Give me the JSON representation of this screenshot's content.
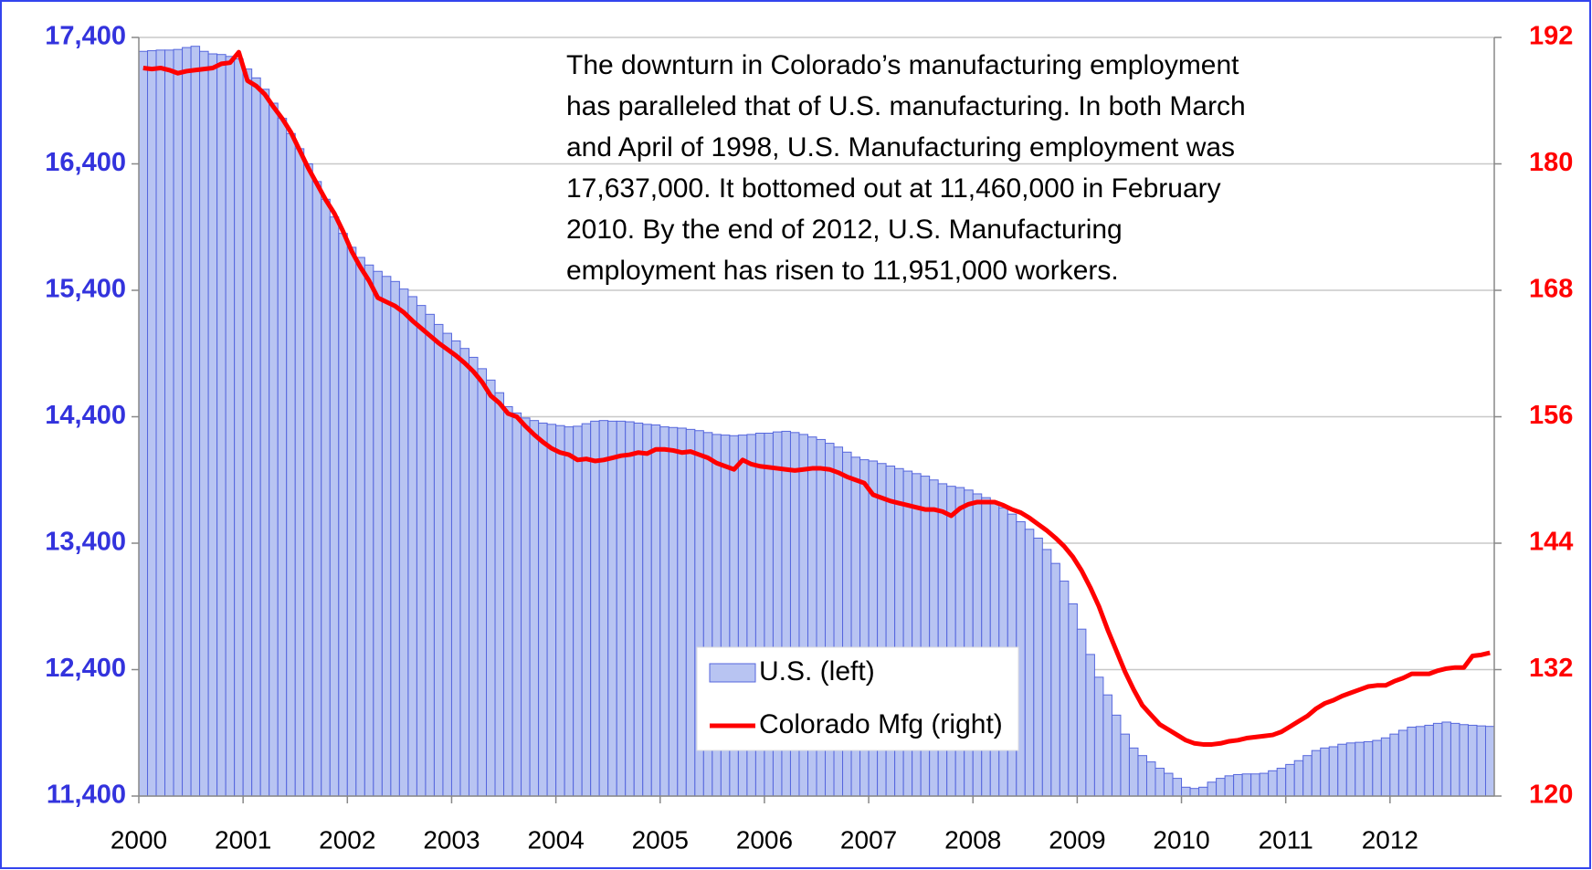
{
  "chart_data": {
    "type": "bar_line",
    "annotation": [
      "The downturn in Colorado’s manufacturing employment",
      "has paralleled that of U.S. manufacturing. In both March",
      "and April of 1998, U.S. Manufacturing employment was",
      "17,637,000. It bottomed out at 11,460,000 in February",
      "2010.   By the end of 2012, U.S. Manufacturing",
      "employment has risen to 11,951,000 workers."
    ],
    "categories": [
      "2000",
      null,
      null,
      null,
      null,
      null,
      null,
      null,
      null,
      null,
      null,
      null,
      "2001",
      null,
      null,
      null,
      null,
      null,
      null,
      null,
      null,
      null,
      null,
      null,
      "2002",
      null,
      null,
      null,
      null,
      null,
      null,
      null,
      null,
      null,
      null,
      null,
      "2003",
      null,
      null,
      null,
      null,
      null,
      null,
      null,
      null,
      null,
      null,
      null,
      "2004",
      null,
      null,
      null,
      null,
      null,
      null,
      null,
      null,
      null,
      null,
      null,
      "2005",
      null,
      null,
      null,
      null,
      null,
      null,
      null,
      null,
      null,
      null,
      null,
      "2006",
      null,
      null,
      null,
      null,
      null,
      null,
      null,
      null,
      null,
      null,
      null,
      "2007",
      null,
      null,
      null,
      null,
      null,
      null,
      null,
      null,
      null,
      null,
      null,
      "2008",
      null,
      null,
      null,
      null,
      null,
      null,
      null,
      null,
      null,
      null,
      null,
      "2009",
      null,
      null,
      null,
      null,
      null,
      null,
      null,
      null,
      null,
      null,
      null,
      "2010",
      null,
      null,
      null,
      null,
      null,
      null,
      null,
      null,
      null,
      null,
      null,
      "2011",
      null,
      null,
      null,
      null,
      null,
      null,
      null,
      null,
      null,
      null,
      null,
      "2012",
      null,
      null,
      null,
      null,
      null,
      null,
      null,
      null,
      null,
      null,
      null
    ],
    "series": [
      {
        "name": "U.S. (left)",
        "type": "bar",
        "color": "#b8c4f2",
        "edge_color": "#5566dd",
        "axis": "y",
        "values": [
          17290,
          17295,
          17300,
          17300,
          17305,
          17320,
          17330,
          17290,
          17270,
          17265,
          17250,
          17230,
          17150,
          17080,
          16990,
          16880,
          16760,
          16640,
          16520,
          16400,
          16260,
          16120,
          15980,
          15850,
          15740,
          15660,
          15600,
          15550,
          15510,
          15470,
          15410,
          15350,
          15280,
          15210,
          15130,
          15060,
          15000,
          14940,
          14870,
          14780,
          14690,
          14590,
          14480,
          14430,
          14390,
          14370,
          14350,
          14340,
          14330,
          14320,
          14325,
          14345,
          14365,
          14370,
          14365,
          14365,
          14360,
          14350,
          14340,
          14335,
          14320,
          14315,
          14310,
          14300,
          14290,
          14275,
          14260,
          14255,
          14250,
          14255,
          14260,
          14270,
          14270,
          14280,
          14285,
          14275,
          14260,
          14240,
          14220,
          14190,
          14160,
          14120,
          14080,
          14060,
          14050,
          14030,
          14010,
          13990,
          13970,
          13950,
          13930,
          13900,
          13870,
          13850,
          13840,
          13820,
          13790,
          13760,
          13720,
          13680,
          13630,
          13570,
          13510,
          13440,
          13350,
          13240,
          13100,
          12920,
          12720,
          12520,
          12340,
          12200,
          12040,
          11890,
          11780,
          11720,
          11670,
          11620,
          11580,
          11540,
          11470,
          11460,
          11470,
          11510,
          11540,
          11560,
          11570,
          11575,
          11575,
          11580,
          11600,
          11620,
          11650,
          11680,
          11720,
          11760,
          11780,
          11790,
          11810,
          11820,
          11825,
          11830,
          11840,
          11860,
          11890,
          11920,
          11945,
          11950,
          11960,
          11975,
          11985,
          11975,
          11965,
          11960,
          11955,
          11951
        ]
      },
      {
        "name": "Colorado Mfg (right)",
        "type": "line",
        "color": "#ff0000",
        "axis": "y2",
        "values": [
          189.1,
          189.0,
          189.1,
          188.9,
          188.6,
          188.8,
          188.9,
          189.0,
          189.1,
          189.5,
          189.6,
          190.6,
          187.9,
          187.4,
          186.6,
          185.4,
          184.3,
          183.0,
          181.3,
          179.6,
          178.1,
          176.6,
          175.3,
          173.6,
          171.7,
          170.2,
          168.9,
          167.3,
          166.9,
          166.5,
          165.9,
          165.1,
          164.4,
          163.7,
          163.0,
          162.4,
          161.8,
          161.1,
          160.3,
          159.3,
          158.0,
          157.3,
          156.3,
          156.0,
          155.1,
          154.3,
          153.6,
          153.0,
          152.6,
          152.4,
          151.9,
          152.0,
          151.8,
          151.9,
          152.1,
          152.3,
          152.4,
          152.6,
          152.5,
          152.9,
          152.9,
          152.8,
          152.6,
          152.7,
          152.4,
          152.1,
          151.6,
          151.3,
          151.0,
          151.9,
          151.5,
          151.3,
          151.2,
          151.1,
          151.0,
          150.9,
          151.0,
          151.1,
          151.1,
          151.0,
          150.7,
          150.3,
          150.0,
          149.7,
          148.6,
          148.3,
          148.0,
          147.8,
          147.6,
          147.4,
          147.2,
          147.2,
          147.0,
          146.6,
          147.3,
          147.7,
          147.9,
          147.9,
          147.9,
          147.6,
          147.2,
          146.9,
          146.4,
          145.8,
          145.2,
          144.5,
          143.7,
          142.7,
          141.4,
          139.8,
          138.0,
          135.8,
          133.8,
          131.8,
          130.1,
          128.6,
          127.7,
          126.8,
          126.3,
          125.8,
          125.3,
          125.0,
          124.9,
          124.9,
          125.0,
          125.2,
          125.3,
          125.5,
          125.6,
          125.7,
          125.8,
          126.1,
          126.6,
          127.1,
          127.6,
          128.3,
          128.8,
          129.1,
          129.5,
          129.8,
          130.1,
          130.4,
          130.5,
          130.5,
          130.9,
          131.2,
          131.6,
          131.6,
          131.6,
          131.9,
          132.1,
          132.2,
          132.2,
          133.3,
          133.4,
          133.6
        ]
      }
    ],
    "ylim": [
      11400,
      17400
    ],
    "yticks": [
      {
        "value": 11400,
        "label": "11,400"
      },
      {
        "value": 12400,
        "label": "12,400"
      },
      {
        "value": 13400,
        "label": "13,400"
      },
      {
        "value": 14400,
        "label": "14,400"
      },
      {
        "value": 15400,
        "label": "15,400"
      },
      {
        "value": 16400,
        "label": "16,400"
      },
      {
        "value": 17400,
        "label": "17,400"
      }
    ],
    "y2lim": [
      120,
      192
    ],
    "y2ticks": [
      120,
      132,
      144,
      156,
      168,
      180,
      192
    ],
    "grid": true,
    "legend_position": "lower center"
  }
}
